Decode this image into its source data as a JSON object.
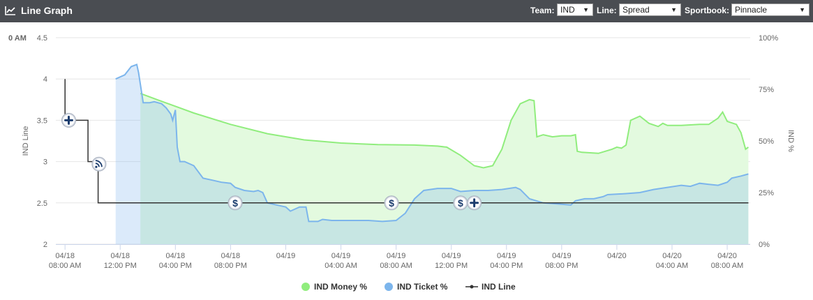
{
  "header": {
    "title": "Line Graph",
    "team_label": "Team:",
    "team_value": "IND",
    "line_label": "Line:",
    "line_value": "Spread",
    "sportsbook_label": "Sportbook:",
    "sportsbook_value": "Pinnacle",
    "dropdown_arrow": "▼"
  },
  "colors": {
    "money": "#90ed7d",
    "money_fill": "#e3fadf",
    "ticket": "#7cb5ec",
    "ticket_fill": "rgba(124,181,236,0.28)",
    "line": "#333333",
    "grid": "#e6e6e6"
  },
  "chart_data": {
    "type": "line",
    "title": "",
    "corner_label": "0 AM",
    "y_left": {
      "label": "IND Line",
      "ticks": [
        "2",
        "2.5",
        "3",
        "3.5",
        "4",
        "4.5"
      ],
      "range": [
        2,
        4.5
      ]
    },
    "y_right": {
      "label": "IND %",
      "ticks": [
        "0%",
        "25%",
        "50%",
        "75%",
        "100%"
      ],
      "range": [
        0,
        100
      ]
    },
    "x_unit": "hours since first tick",
    "x_range": [
      -1,
      74.5
    ],
    "x_ticks": [
      {
        "x": 0,
        "date": "04/18",
        "time": "08:00 AM"
      },
      {
        "x": 6,
        "date": "04/18",
        "time": "12:00 PM"
      },
      {
        "x": 12,
        "date": "04/18",
        "time": "04:00 PM"
      },
      {
        "x": 18,
        "date": "04/18",
        "time": "08:00 PM"
      },
      {
        "x": 24,
        "date": "04/19",
        "time": ""
      },
      {
        "x": 30,
        "date": "04/19",
        "time": "04:00 AM"
      },
      {
        "x": 36,
        "date": "04/19",
        "time": "08:00 AM"
      },
      {
        "x": 42,
        "date": "04/19",
        "time": "12:00 PM"
      },
      {
        "x": 48,
        "date": "04/19",
        "time": "04:00 PM"
      },
      {
        "x": 54,
        "date": "04/19",
        "time": "08:00 PM"
      },
      {
        "x": 60,
        "date": "04/20",
        "time": ""
      },
      {
        "x": 66,
        "date": "04/20",
        "time": "04:00 AM"
      },
      {
        "x": 72,
        "date": "04/20",
        "time": "08:00 AM"
      }
    ],
    "legend_position": "bottom-center",
    "series": [
      {
        "name": "IND Money %",
        "axis": "right",
        "values": [
          [
            8.2,
            73
          ],
          [
            10,
            70
          ],
          [
            14,
            63.5
          ],
          [
            18,
            58
          ],
          [
            22,
            53.5
          ],
          [
            26,
            50.5
          ],
          [
            30,
            49
          ],
          [
            34,
            48.2
          ],
          [
            38,
            48
          ],
          [
            40.5,
            47.5
          ],
          [
            41.5,
            47
          ],
          [
            43,
            43
          ],
          [
            44.5,
            38
          ],
          [
            45.5,
            37
          ],
          [
            46.5,
            38
          ],
          [
            47.5,
            46
          ],
          [
            48.5,
            60
          ],
          [
            49.5,
            68
          ],
          [
            50.5,
            70
          ],
          [
            51,
            69.5
          ],
          [
            51.3,
            52
          ],
          [
            52,
            53
          ],
          [
            53,
            52
          ],
          [
            54,
            52.5
          ],
          [
            55,
            52.5
          ],
          [
            55.5,
            53
          ],
          [
            55.7,
            45
          ],
          [
            56.2,
            44.5
          ],
          [
            58,
            44
          ],
          [
            59.5,
            46
          ],
          [
            60,
            47
          ],
          [
            60.5,
            46.5
          ],
          [
            61,
            48
          ],
          [
            61.5,
            60
          ],
          [
            62.5,
            62
          ],
          [
            63.5,
            58.5
          ],
          [
            64.5,
            57
          ],
          [
            65,
            58.5
          ],
          [
            65.5,
            57.5
          ],
          [
            67,
            57.5
          ],
          [
            69,
            58
          ],
          [
            70,
            58
          ],
          [
            71,
            61
          ],
          [
            71.5,
            64
          ],
          [
            72,
            59.5
          ],
          [
            73,
            58
          ],
          [
            73.5,
            54
          ],
          [
            74,
            46
          ],
          [
            74.3,
            47
          ]
        ]
      },
      {
        "name": "IND Ticket %",
        "axis": "right",
        "values": [
          [
            5.5,
            80
          ],
          [
            6.5,
            82
          ],
          [
            7.2,
            86
          ],
          [
            7.8,
            87
          ],
          [
            8,
            83
          ],
          [
            8.5,
            68.5
          ],
          [
            9.2,
            68.5
          ],
          [
            9.7,
            69
          ],
          [
            10.5,
            68
          ],
          [
            11,
            66
          ],
          [
            11.5,
            63
          ],
          [
            11.7,
            60
          ],
          [
            12,
            65
          ],
          [
            12.2,
            47
          ],
          [
            12.5,
            40
          ],
          [
            13,
            40
          ],
          [
            14,
            38
          ],
          [
            15,
            32
          ],
          [
            16,
            31
          ],
          [
            17,
            30
          ],
          [
            18,
            29.5
          ],
          [
            18.5,
            27.5
          ],
          [
            19.5,
            26
          ],
          [
            20.5,
            25.5
          ],
          [
            21,
            26
          ],
          [
            21.5,
            25
          ],
          [
            22,
            20
          ],
          [
            23,
            19
          ],
          [
            24,
            18
          ],
          [
            24.5,
            16
          ],
          [
            25.5,
            18
          ],
          [
            26.2,
            18
          ],
          [
            26.5,
            11
          ],
          [
            27.5,
            11
          ],
          [
            28,
            12
          ],
          [
            29,
            11.5
          ],
          [
            31,
            11.5
          ],
          [
            33,
            11.5
          ],
          [
            34.5,
            11
          ],
          [
            36,
            11.5
          ],
          [
            37,
            15
          ],
          [
            38,
            22
          ],
          [
            39,
            26
          ],
          [
            40.5,
            27
          ],
          [
            42,
            27
          ],
          [
            43,
            25.5
          ],
          [
            44.5,
            26
          ],
          [
            46,
            26
          ],
          [
            47.5,
            26.5
          ],
          [
            49,
            27.5
          ],
          [
            49.5,
            26.5
          ],
          [
            50.5,
            22
          ],
          [
            52,
            20
          ],
          [
            53.5,
            19.5
          ],
          [
            55,
            19
          ],
          [
            55.5,
            21
          ],
          [
            56.5,
            22
          ],
          [
            57.5,
            22
          ],
          [
            58.5,
            23
          ],
          [
            59,
            24
          ],
          [
            61,
            24.5
          ],
          [
            62.5,
            25
          ],
          [
            64,
            26.5
          ],
          [
            65.5,
            27.5
          ],
          [
            67,
            28.5
          ],
          [
            68,
            28
          ],
          [
            69,
            29.5
          ],
          [
            70,
            29
          ],
          [
            71,
            28.5
          ],
          [
            72,
            30
          ],
          [
            72.5,
            32
          ],
          [
            73.5,
            33
          ],
          [
            74.3,
            34
          ]
        ]
      },
      {
        "name": "IND Line",
        "axis": "left",
        "step": true,
        "values": [
          [
            0,
            4.0
          ],
          [
            0,
            3.5
          ],
          [
            2.5,
            3.5
          ],
          [
            2.5,
            3.0
          ],
          [
            3.6,
            3.0
          ],
          [
            3.6,
            2.5
          ],
          [
            74.3,
            2.5
          ]
        ]
      }
    ],
    "markers": [
      {
        "x": 0.4,
        "y": 3.5,
        "icon": "plus"
      },
      {
        "x": 3.7,
        "y": 2.97,
        "icon": "rss"
      },
      {
        "x": 18.5,
        "y": 2.5,
        "icon": "dollar"
      },
      {
        "x": 35.5,
        "y": 2.5,
        "icon": "dollar"
      },
      {
        "x": 43,
        "y": 2.5,
        "icon": "dollar"
      },
      {
        "x": 44.5,
        "y": 2.5,
        "icon": "plus"
      }
    ]
  }
}
